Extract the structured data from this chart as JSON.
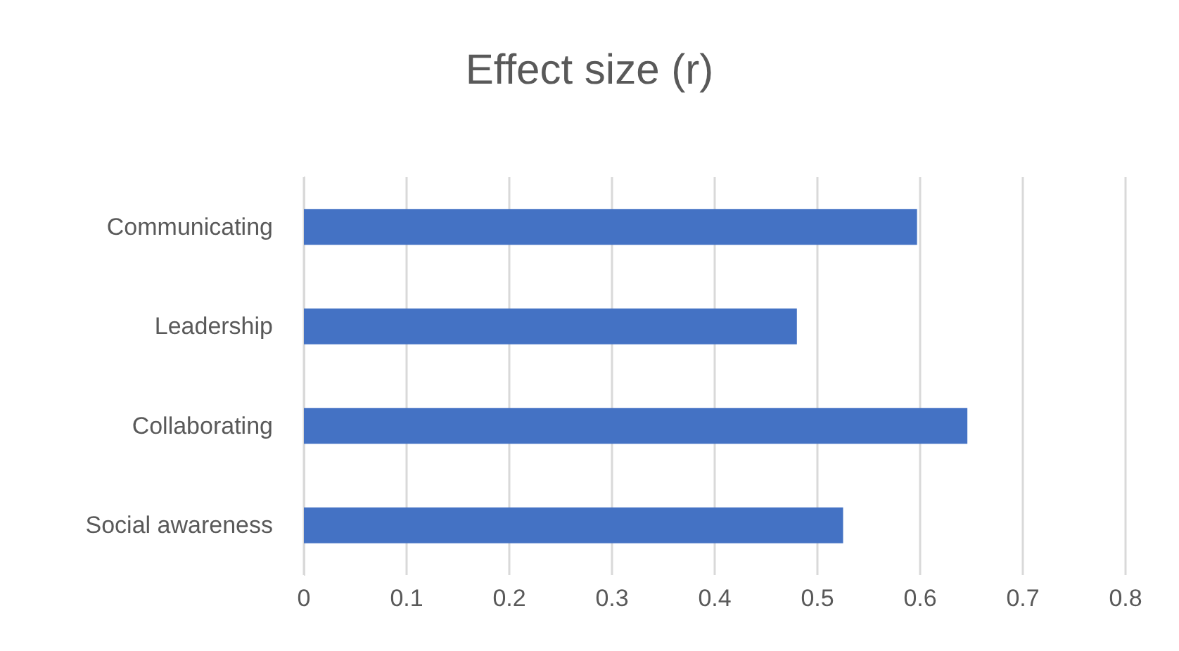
{
  "chart_data": {
    "type": "bar",
    "orientation": "horizontal",
    "title": "Effect size (r)",
    "categories": [
      "Communicating",
      "Leadership",
      "Collaborating",
      "Social awareness"
    ],
    "values": [
      0.597,
      0.48,
      0.646,
      0.525
    ],
    "color": "#4472c4",
    "xlim": [
      0,
      0.8
    ],
    "xticks": [
      0,
      0.1,
      0.2,
      0.3,
      0.4,
      0.5,
      0.6,
      0.7,
      0.8
    ],
    "grid": "x"
  }
}
